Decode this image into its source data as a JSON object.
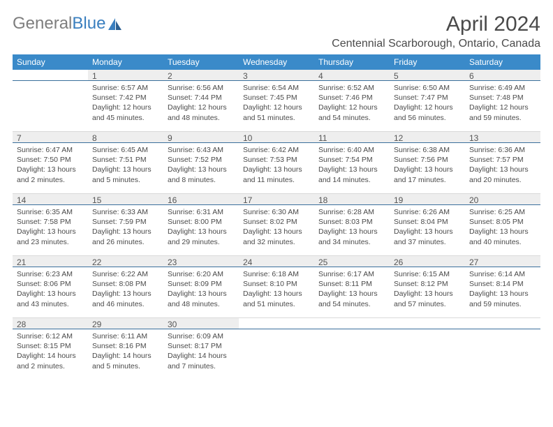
{
  "logo": {
    "text1": "General",
    "text2": "Blue"
  },
  "title": "April 2024",
  "location": "Centennial Scarborough, Ontario, Canada",
  "colors": {
    "header_bg": "#3a8ac9",
    "header_text": "#ffffff",
    "daynum_bg": "#eeeeee",
    "daynum_border": "#3a6f9c",
    "text": "#4a4a4a",
    "logo_gray": "#7e7e7e",
    "logo_blue": "#3a7fbf"
  },
  "columns": [
    "Sunday",
    "Monday",
    "Tuesday",
    "Wednesday",
    "Thursday",
    "Friday",
    "Saturday"
  ],
  "weeks": [
    [
      null,
      {
        "d": "1",
        "sr": "Sunrise: 6:57 AM",
        "ss": "Sunset: 7:42 PM",
        "dl": "Daylight: 12 hours and 45 minutes."
      },
      {
        "d": "2",
        "sr": "Sunrise: 6:56 AM",
        "ss": "Sunset: 7:44 PM",
        "dl": "Daylight: 12 hours and 48 minutes."
      },
      {
        "d": "3",
        "sr": "Sunrise: 6:54 AM",
        "ss": "Sunset: 7:45 PM",
        "dl": "Daylight: 12 hours and 51 minutes."
      },
      {
        "d": "4",
        "sr": "Sunrise: 6:52 AM",
        "ss": "Sunset: 7:46 PM",
        "dl": "Daylight: 12 hours and 54 minutes."
      },
      {
        "d": "5",
        "sr": "Sunrise: 6:50 AM",
        "ss": "Sunset: 7:47 PM",
        "dl": "Daylight: 12 hours and 56 minutes."
      },
      {
        "d": "6",
        "sr": "Sunrise: 6:49 AM",
        "ss": "Sunset: 7:48 PM",
        "dl": "Daylight: 12 hours and 59 minutes."
      }
    ],
    [
      {
        "d": "7",
        "sr": "Sunrise: 6:47 AM",
        "ss": "Sunset: 7:50 PM",
        "dl": "Daylight: 13 hours and 2 minutes."
      },
      {
        "d": "8",
        "sr": "Sunrise: 6:45 AM",
        "ss": "Sunset: 7:51 PM",
        "dl": "Daylight: 13 hours and 5 minutes."
      },
      {
        "d": "9",
        "sr": "Sunrise: 6:43 AM",
        "ss": "Sunset: 7:52 PM",
        "dl": "Daylight: 13 hours and 8 minutes."
      },
      {
        "d": "10",
        "sr": "Sunrise: 6:42 AM",
        "ss": "Sunset: 7:53 PM",
        "dl": "Daylight: 13 hours and 11 minutes."
      },
      {
        "d": "11",
        "sr": "Sunrise: 6:40 AM",
        "ss": "Sunset: 7:54 PM",
        "dl": "Daylight: 13 hours and 14 minutes."
      },
      {
        "d": "12",
        "sr": "Sunrise: 6:38 AM",
        "ss": "Sunset: 7:56 PM",
        "dl": "Daylight: 13 hours and 17 minutes."
      },
      {
        "d": "13",
        "sr": "Sunrise: 6:36 AM",
        "ss": "Sunset: 7:57 PM",
        "dl": "Daylight: 13 hours and 20 minutes."
      }
    ],
    [
      {
        "d": "14",
        "sr": "Sunrise: 6:35 AM",
        "ss": "Sunset: 7:58 PM",
        "dl": "Daylight: 13 hours and 23 minutes."
      },
      {
        "d": "15",
        "sr": "Sunrise: 6:33 AM",
        "ss": "Sunset: 7:59 PM",
        "dl": "Daylight: 13 hours and 26 minutes."
      },
      {
        "d": "16",
        "sr": "Sunrise: 6:31 AM",
        "ss": "Sunset: 8:00 PM",
        "dl": "Daylight: 13 hours and 29 minutes."
      },
      {
        "d": "17",
        "sr": "Sunrise: 6:30 AM",
        "ss": "Sunset: 8:02 PM",
        "dl": "Daylight: 13 hours and 32 minutes."
      },
      {
        "d": "18",
        "sr": "Sunrise: 6:28 AM",
        "ss": "Sunset: 8:03 PM",
        "dl": "Daylight: 13 hours and 34 minutes."
      },
      {
        "d": "19",
        "sr": "Sunrise: 6:26 AM",
        "ss": "Sunset: 8:04 PM",
        "dl": "Daylight: 13 hours and 37 minutes."
      },
      {
        "d": "20",
        "sr": "Sunrise: 6:25 AM",
        "ss": "Sunset: 8:05 PM",
        "dl": "Daylight: 13 hours and 40 minutes."
      }
    ],
    [
      {
        "d": "21",
        "sr": "Sunrise: 6:23 AM",
        "ss": "Sunset: 8:06 PM",
        "dl": "Daylight: 13 hours and 43 minutes."
      },
      {
        "d": "22",
        "sr": "Sunrise: 6:22 AM",
        "ss": "Sunset: 8:08 PM",
        "dl": "Daylight: 13 hours and 46 minutes."
      },
      {
        "d": "23",
        "sr": "Sunrise: 6:20 AM",
        "ss": "Sunset: 8:09 PM",
        "dl": "Daylight: 13 hours and 48 minutes."
      },
      {
        "d": "24",
        "sr": "Sunrise: 6:18 AM",
        "ss": "Sunset: 8:10 PM",
        "dl": "Daylight: 13 hours and 51 minutes."
      },
      {
        "d": "25",
        "sr": "Sunrise: 6:17 AM",
        "ss": "Sunset: 8:11 PM",
        "dl": "Daylight: 13 hours and 54 minutes."
      },
      {
        "d": "26",
        "sr": "Sunrise: 6:15 AM",
        "ss": "Sunset: 8:12 PM",
        "dl": "Daylight: 13 hours and 57 minutes."
      },
      {
        "d": "27",
        "sr": "Sunrise: 6:14 AM",
        "ss": "Sunset: 8:14 PM",
        "dl": "Daylight: 13 hours and 59 minutes."
      }
    ],
    [
      {
        "d": "28",
        "sr": "Sunrise: 6:12 AM",
        "ss": "Sunset: 8:15 PM",
        "dl": "Daylight: 14 hours and 2 minutes."
      },
      {
        "d": "29",
        "sr": "Sunrise: 6:11 AM",
        "ss": "Sunset: 8:16 PM",
        "dl": "Daylight: 14 hours and 5 minutes."
      },
      {
        "d": "30",
        "sr": "Sunrise: 6:09 AM",
        "ss": "Sunset: 8:17 PM",
        "dl": "Daylight: 14 hours and 7 minutes."
      },
      null,
      null,
      null,
      null
    ]
  ]
}
